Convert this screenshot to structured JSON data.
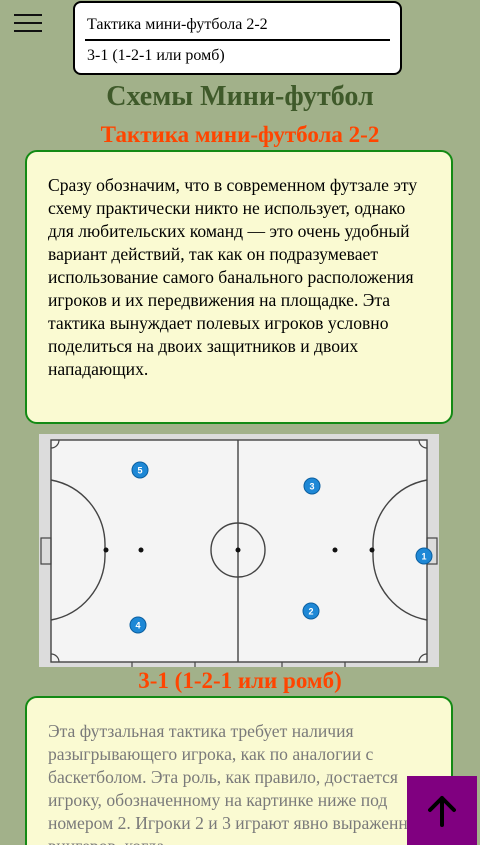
{
  "nav": {
    "toc": [
      "Тактика мини-футбола 2-2",
      "3-1 (1-2-1 или ромб)"
    ]
  },
  "page_title": "Схемы Мини-футбол",
  "sections": [
    {
      "heading": "Тактика мини-футбола 2-2",
      "text": "Сразу обозначим, что в современном футзале эту схему практически никто не использует, однако для любительских команд — это очень удобный вариант действий, так как он подразумевает использование самого банального расположения игроков и их передвижения на площадке. Эта тактика вынуждает полевых игроков условно поделиться на двоих защитников и двоих нападающих."
    },
    {
      "heading": "3-1 (1-2-1 или ромб)",
      "text": "Эта футзальная тактика требует наличия разыгрывающего игрока, как по аналогии с баскетболом. Эта роль, как правило, достается игроку, обозначенному на картинке ниже под номером 2. Игроки 2 и 3 играют явно выраженных вингеров, когда"
    }
  ],
  "diagram": {
    "players": [
      "5",
      "3",
      "1",
      "4",
      "2"
    ]
  },
  "colors": {
    "background": "#a2b18a",
    "title": "#3f5a2a",
    "heading": "#ff4500",
    "card_bg": "#fafad2",
    "card_border": "#138a14",
    "up_button": "#800080"
  },
  "icons": {
    "menu": "hamburger-icon",
    "scroll_top": "arrow-up-icon"
  }
}
